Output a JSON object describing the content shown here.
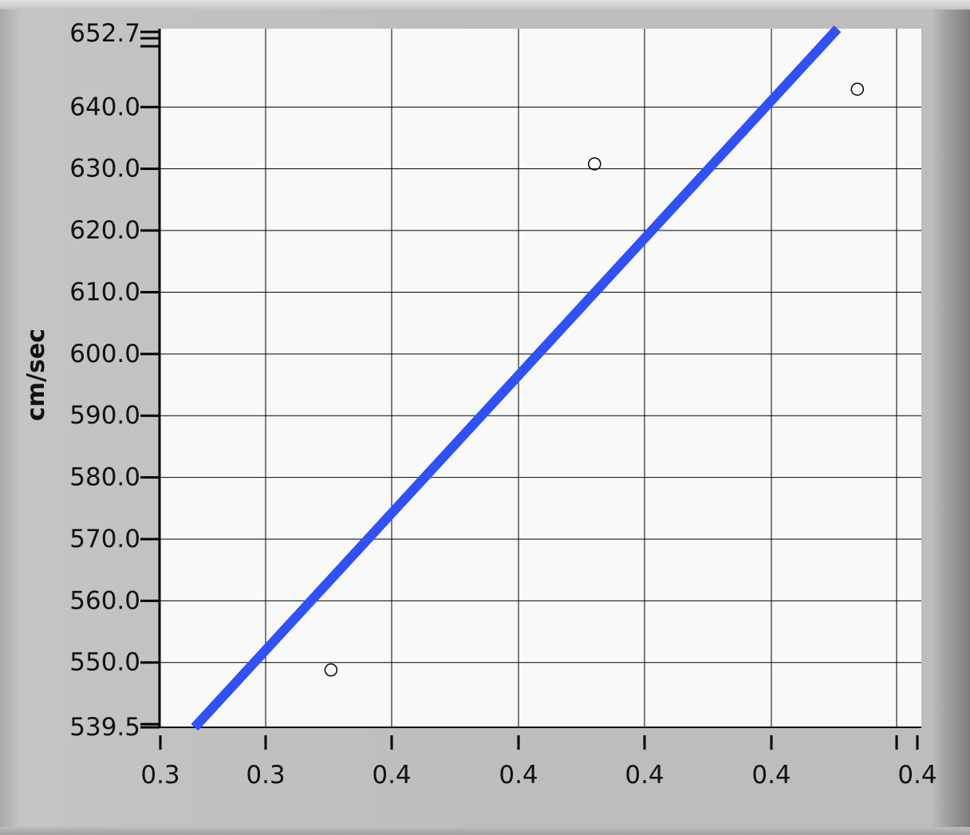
{
  "chart_data": {
    "type": "scatter",
    "ylabel": "cm/sec",
    "xlabel": "",
    "x_tick_labels": [
      "0.3",
      "0.3",
      "0.4",
      "0.4",
      "0.4",
      "0.4",
      "0.4"
    ],
    "y_tick_labels": [
      "652.7",
      "640.0",
      "630.0",
      "620.0",
      "610.0",
      "600.0",
      "590.0",
      "580.0",
      "570.0",
      "560.0",
      "550.0",
      "539.5"
    ],
    "xlim": [
      0.3,
      0.4
    ],
    "ylim": [
      539.5,
      652.7
    ],
    "grid": true,
    "series": [
      {
        "kind": "points",
        "marker": "open-circle",
        "color": "#000000",
        "points": [
          {
            "x": 0.3225,
            "y": 548.8
          },
          {
            "x": 0.3571,
            "y": 630.8
          },
          {
            "x": 0.3916,
            "y": 642.9
          }
        ]
      },
      {
        "kind": "fit-line",
        "color": "#3050f8",
        "points": [
          {
            "x": 0.3046,
            "y": 539.5
          },
          {
            "x": 0.389,
            "y": 652.7
          }
        ]
      }
    ]
  }
}
